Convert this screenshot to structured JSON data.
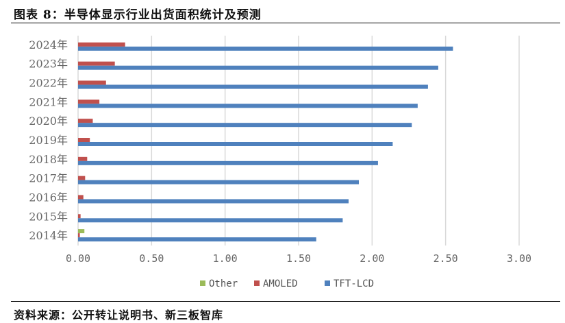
{
  "title": "图表 8：半导体显示行业出货面积统计及预测",
  "source": "资料来源：公开转让说明书、新三板智库",
  "chart_data": {
    "type": "bar",
    "orientation": "horizontal",
    "categories": [
      "2014年",
      "2015年",
      "2016年",
      "2017年",
      "2018年",
      "2019年",
      "2020年",
      "2021年",
      "2022年",
      "2023年",
      "2024年"
    ],
    "series": [
      {
        "name": "Other",
        "color": "#9BBB59",
        "values": [
          0.043,
          0,
          0,
          0,
          0,
          0,
          0,
          0,
          0,
          0,
          0
        ]
      },
      {
        "name": "AMOLED",
        "color": "#C0504D",
        "values": [
          0.012,
          0.017,
          0.036,
          0.048,
          0.062,
          0.08,
          0.1,
          0.145,
          0.19,
          0.25,
          0.32
        ]
      },
      {
        "name": "TFT-LCD",
        "color": "#4F81BD",
        "values": [
          1.62,
          1.8,
          1.84,
          1.91,
          2.04,
          2.14,
          2.27,
          2.31,
          2.38,
          2.45,
          2.55
        ]
      }
    ],
    "xlim": [
      0,
      3
    ],
    "xticks": [
      "0.00",
      "0.50",
      "1.00",
      "1.50",
      "2.00",
      "2.50",
      "3.00"
    ],
    "grid": true,
    "legend_position": "bottom",
    "xlabel": "",
    "ylabel": ""
  }
}
